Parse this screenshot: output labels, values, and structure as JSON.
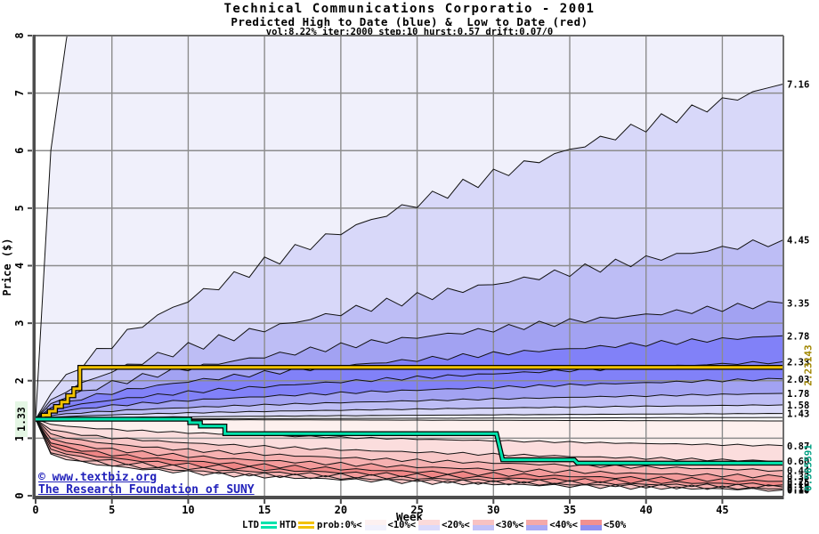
{
  "title": {
    "line1": "Technical Communications Corporatio - 2001",
    "line2": "Predicted High to Date (blue) &  Low to Date (red)",
    "line3": "vol:8.22% iter:2000 step:10 hurst:0.57 drift:0.07/0"
  },
  "watermark": {
    "line1": "© www.textbiz.org",
    "line2": "The Research Foundation of SUNY",
    "color": "#2222bb"
  },
  "legend": {
    "items": [
      {
        "label": "LTD",
        "swatch": "line",
        "color": "#00e3ac"
      },
      {
        "label": "HTD",
        "swatch": "line",
        "color": "#f2c200"
      },
      {
        "label": "prob:0%<",
        "swatch": "band",
        "top": "#fdf1f1",
        "bottom": "#f1f1fd"
      },
      {
        "label": "<10%<",
        "swatch": "band",
        "top": "#fbdada",
        "bottom": "#dadafb"
      },
      {
        "label": "<20%<",
        "swatch": "band",
        "top": "#f8c2c2",
        "bottom": "#c2c2f8"
      },
      {
        "label": "<30%<",
        "swatch": "band",
        "top": "#f5a9a9",
        "bottom": "#a9a9f5"
      },
      {
        "label": "<40%<",
        "swatch": "band",
        "top": "#f19090",
        "bottom": "#9090f1"
      },
      {
        "label": "<50%",
        "swatch": "none"
      }
    ]
  },
  "chart_data": {
    "type": "area",
    "title": "Technical Communications Corporatio - 2001",
    "xlabel": "Week",
    "ylabel": "Price ($)",
    "xlim": [
      0,
      49
    ],
    "ylim": [
      0,
      8
    ],
    "x_ticks": [
      0,
      5,
      10,
      15,
      20,
      25,
      30,
      35,
      40,
      45
    ],
    "y_ticks": [
      0,
      1,
      2,
      3,
      4,
      5,
      6,
      7,
      8
    ],
    "grid": true,
    "start": {
      "week": 0,
      "price": 1.33,
      "label": "1.33"
    },
    "high_fan": {
      "side": "blue",
      "boundaries": [
        {
          "end": 34.0,
          "alpha": 0.5,
          "label": ""
        },
        {
          "end": 7.16,
          "alpha": 0.65,
          "label": "7.16"
        },
        {
          "end": 4.45,
          "alpha": 0.58,
          "label": "4.45"
        },
        {
          "end": 3.35,
          "alpha": 0.52,
          "label": "3.35"
        },
        {
          "end": 2.78,
          "alpha": 0.5,
          "label": "2.78"
        },
        {
          "end": 2.33,
          "alpha": 0.48,
          "label": "2.33"
        },
        {
          "end": 2.03,
          "alpha": 0.48,
          "label": "2.03"
        },
        {
          "end": 1.78,
          "alpha": 0.5,
          "label": "1.78"
        },
        {
          "end": 1.58,
          "alpha": 0.52,
          "label": "1.58"
        },
        {
          "end": 1.43,
          "alpha": 0.55,
          "label": "1.43"
        },
        {
          "end": 1.36,
          "alpha": 0.9,
          "label": ""
        }
      ],
      "fills": [
        "#f0f0fb",
        "#d8d8f9",
        "#bdbdf5",
        "#a2a2f2",
        "#8181f8",
        "#8181f8",
        "#a2a2f2",
        "#bdbdf5",
        "#d8d8f9",
        "#f0f0fb"
      ]
    },
    "low_fan": {
      "side": "red",
      "boundaries": [
        {
          "end": 1.3,
          "alpha": 0.9,
          "label": ""
        },
        {
          "end": 0.87,
          "alpha": 0.42,
          "label": "0.87"
        },
        {
          "end": 0.6,
          "alpha": 0.36,
          "label": "0.60"
        },
        {
          "end": 0.44,
          "alpha": 0.32,
          "label": "0.44"
        },
        {
          "end": 0.33,
          "alpha": 0.28,
          "label": "0.33"
        },
        {
          "end": 0.25,
          "alpha": 0.25,
          "label": "0.25"
        },
        {
          "end": 0.19,
          "alpha": 0.23,
          "label": "0.19"
        },
        {
          "end": 0.15,
          "alpha": 0.21,
          "label": "0.15"
        },
        {
          "end": 0.12,
          "alpha": 0.19,
          "label": "0.12"
        },
        {
          "end": 0.1,
          "alpha": 0.18,
          "label": "0.10"
        }
      ],
      "fills": [
        "#fdf0ee",
        "#fbdddd",
        "#f8c7c7",
        "#f6b1b1",
        "#f39b9b",
        "#ef8686",
        "#f39b9b",
        "#f6b1b1",
        "#f8c7c7"
      ]
    },
    "htd_line": {
      "name": "HTD",
      "color": "#f2c200",
      "final_value": 2.23143,
      "final_label": "2.23143",
      "final_label_color": "#a08600",
      "points": [
        [
          0,
          1.33
        ],
        [
          0.5,
          1.33
        ],
        [
          0.5,
          1.4
        ],
        [
          0.9,
          1.4
        ],
        [
          0.9,
          1.47
        ],
        [
          1.3,
          1.47
        ],
        [
          1.3,
          1.55
        ],
        [
          1.7,
          1.55
        ],
        [
          1.7,
          1.63
        ],
        [
          2.1,
          1.63
        ],
        [
          2.1,
          1.74
        ],
        [
          2.5,
          1.74
        ],
        [
          2.5,
          1.86
        ],
        [
          2.9,
          1.86
        ],
        [
          2.9,
          2.23143
        ],
        [
          49,
          2.23143
        ]
      ]
    },
    "ltd_line": {
      "name": "LTD",
      "color": "#00e3ac",
      "final_value": 0.565591,
      "final_label": "0.565591",
      "final_label_color": "#00a083",
      "points": [
        [
          0,
          1.33
        ],
        [
          10.1,
          1.33
        ],
        [
          10.1,
          1.27
        ],
        [
          10.8,
          1.27
        ],
        [
          10.8,
          1.21
        ],
        [
          12.4,
          1.21
        ],
        [
          12.4,
          1.08
        ],
        [
          30.2,
          1.08
        ],
        [
          30.6,
          0.625
        ],
        [
          35.3,
          0.625
        ],
        [
          35.5,
          0.5656
        ],
        [
          49,
          0.5656
        ]
      ]
    },
    "colors": {
      "grid": "#8c8c8c",
      "frame": "#6e6e6e",
      "axis_bar": "#4d4d4d",
      "contour": "#111111",
      "start_highlight": "#e4f6e4"
    }
  }
}
